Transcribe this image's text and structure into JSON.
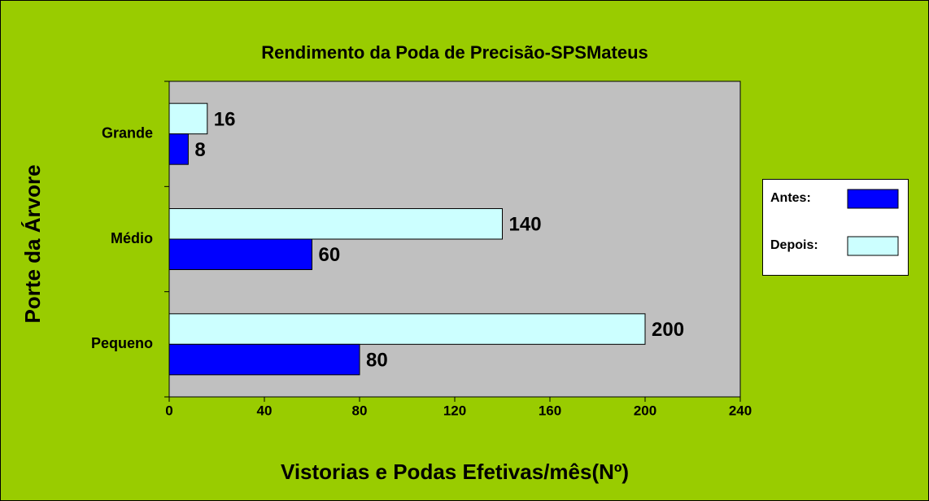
{
  "chart_data": {
    "type": "hbar",
    "title": "Rendimento da Poda de Precisão-SPSMateus",
    "x_label": "Vistorias e Podas Efetivas/mês(Nº)",
    "y_label": "Porte da Árvore",
    "categories": [
      "Grande",
      "Médio",
      "Pequeno"
    ],
    "series": [
      {
        "name": "Antes:",
        "color": "#0000ff",
        "values": [
          8,
          60,
          80
        ]
      },
      {
        "name": "Depois:",
        "color": "#ccffff",
        "values": [
          16,
          140,
          200
        ]
      }
    ],
    "xlim": [
      0,
      240
    ],
    "xticks": [
      0,
      40,
      80,
      120,
      160,
      200,
      240
    ],
    "legend": "right"
  }
}
